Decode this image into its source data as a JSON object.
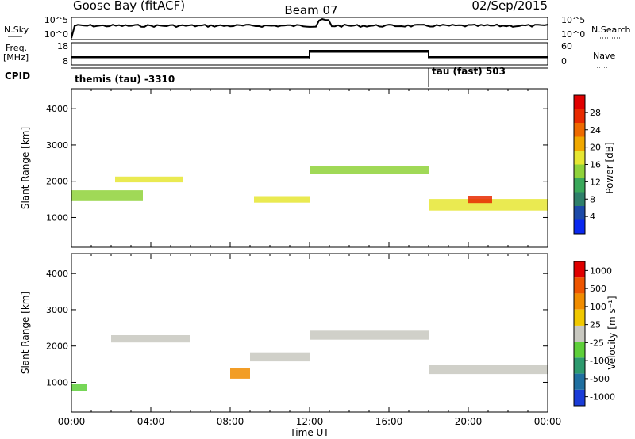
{
  "header": {
    "station": "Goose Bay (fitACF)",
    "beam": "Beam 07",
    "date": "02/Sep/2015"
  },
  "strips": {
    "nsky": {
      "label": "N.Sky",
      "ticks": [
        "10^5",
        "10^0"
      ],
      "right_label": "N.Search",
      "right_ticks": [
        "10^5",
        "10^0"
      ]
    },
    "freq": {
      "label_line1": "Freq.",
      "label_line2": "[MHz]",
      "ticks": [
        "18",
        "8"
      ],
      "right_label": "Nave",
      "right_ticks": [
        "60",
        "0"
      ]
    },
    "cpid": {
      "label": "CPID",
      "segments": [
        "themis (tau) -3310",
        "tau (fast) 503"
      ]
    }
  },
  "x_axis": {
    "title": "Time UT",
    "ticks": [
      "00:00",
      "04:00",
      "08:00",
      "12:00",
      "16:00",
      "20:00",
      "00:00"
    ]
  },
  "chart_data": [
    {
      "type": "heatmap",
      "name": "power",
      "xlabel": "Time UT",
      "ylabel": "Slant Range [km]",
      "x_range_hours": [
        0,
        24
      ],
      "y_range_km": [
        180,
        4550
      ],
      "y_ticks": [
        "1000",
        "2000",
        "3000",
        "4000"
      ],
      "colorbar": {
        "label": "Power [dB]",
        "ticks": [
          "4",
          "8",
          "12",
          "16",
          "20",
          "24",
          "28"
        ],
        "colors": [
          "#0a28f0",
          "#1c4aa8",
          "#2e7f6a",
          "#3aa85a",
          "#8fd23a",
          "#e6e632",
          "#f0a800",
          "#ee6a00",
          "#e82a00",
          "#e00000"
        ]
      },
      "features": [
        {
          "start_hour": 0.0,
          "end_hour": 3.6,
          "center_km": 1600,
          "width_km": 300,
          "level": 4
        },
        {
          "start_hour": 2.2,
          "end_hour": 5.6,
          "center_km": 2050,
          "width_km": 160,
          "level": 5
        },
        {
          "start_hour": 9.2,
          "end_hour": 12.0,
          "center_km": 1500,
          "width_km": 180,
          "level": 5
        },
        {
          "start_hour": 12.0,
          "end_hour": 18.0,
          "center_km": 2300,
          "width_km": 220,
          "level": 4
        },
        {
          "start_hour": 18.0,
          "end_hour": 24.0,
          "center_km": 1350,
          "width_km": 320,
          "level": 5
        },
        {
          "start_hour": 20.0,
          "end_hour": 21.2,
          "center_km": 1500,
          "width_km": 200,
          "level": 8
        }
      ]
    },
    {
      "type": "heatmap",
      "name": "velocity",
      "xlabel": "Time UT",
      "ylabel": "Slant Range [km]",
      "x_range_hours": [
        0,
        24
      ],
      "y_range_km": [
        180,
        4550
      ],
      "y_ticks": [
        "1000",
        "2000",
        "3000",
        "4000"
      ],
      "colorbar": {
        "label": "Velocity [m s⁻¹]",
        "ticks": [
          "1000",
          "500",
          "100",
          "25",
          "-25",
          "-100",
          "-500",
          "-1000"
        ],
        "colors": [
          "#1a3cd8",
          "#1f6fa0",
          "#2d9a6e",
          "#5ecf3a",
          "#c8c8c0",
          "#f0c800",
          "#f08c00",
          "#ee5500",
          "#e00000"
        ]
      },
      "features": [
        {
          "start_hour": 2.0,
          "end_hour": 6.0,
          "center_km": 2200,
          "width_km": 200,
          "level": 4
        },
        {
          "start_hour": 9.0,
          "end_hour": 12.0,
          "center_km": 1700,
          "width_km": 250,
          "level": 4
        },
        {
          "start_hour": 12.0,
          "end_hour": 18.0,
          "center_km": 2300,
          "width_km": 250,
          "level": 4
        },
        {
          "start_hour": 18.0,
          "end_hour": 24.0,
          "center_km": 1350,
          "width_km": 250,
          "level": 4
        },
        {
          "start_hour": 8.0,
          "end_hour": 9.0,
          "center_km": 1250,
          "width_km": 300,
          "level": 6
        },
        {
          "start_hour": 0.0,
          "end_hour": 0.8,
          "center_km": 850,
          "width_km": 200,
          "level": 3
        }
      ]
    }
  ]
}
